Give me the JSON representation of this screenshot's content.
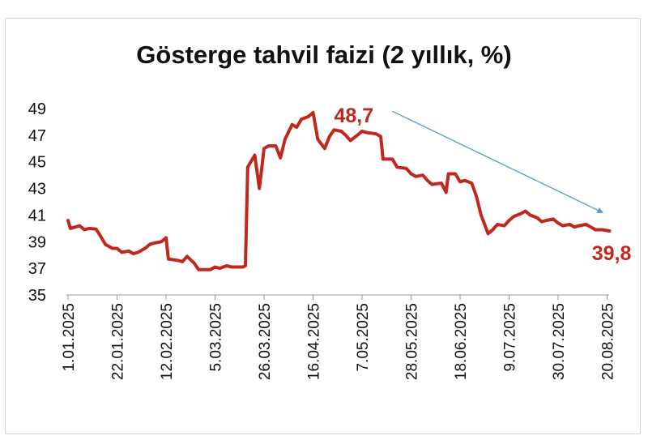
{
  "chart_data": {
    "type": "line",
    "title": "Gösterge tahvil faizi (2 yıllık, %)",
    "xlabel": "",
    "ylabel": "",
    "ylim": [
      35,
      49
    ],
    "yticks": [
      "49",
      "47",
      "45",
      "43",
      "41",
      "39",
      "37",
      "35"
    ],
    "xticks": [
      "1.01.2025",
      "22.01.2025",
      "12.02.2025",
      "5.03.2025",
      "26.03.2025",
      "16.04.2025",
      "7.05.2025",
      "28.05.2025",
      "18.06.2025",
      "9.07.2025",
      "30.07.2025",
      "20.08.2025"
    ],
    "grid": false,
    "legend": "none",
    "series": [
      {
        "color": "#c0281e",
        "points": [
          [
            "2025-01-01",
            40.6
          ],
          [
            "2025-01-02",
            40.0
          ],
          [
            "2025-01-06",
            40.2
          ],
          [
            "2025-01-08",
            39.9
          ],
          [
            "2025-01-10",
            40.0
          ],
          [
            "2025-01-13",
            39.95
          ],
          [
            "2025-01-15",
            39.4
          ],
          [
            "2025-01-17",
            38.8
          ],
          [
            "2025-01-20",
            38.5
          ],
          [
            "2025-01-22",
            38.5
          ],
          [
            "2025-01-24",
            38.2
          ],
          [
            "2025-01-27",
            38.3
          ],
          [
            "2025-01-29",
            38.1
          ],
          [
            "2025-01-31",
            38.2
          ],
          [
            "2025-02-03",
            38.5
          ],
          [
            "2025-02-05",
            38.8
          ],
          [
            "2025-02-07",
            38.9
          ],
          [
            "2025-02-10",
            39.0
          ],
          [
            "2025-02-12",
            39.3
          ],
          [
            "2025-02-13",
            37.7
          ],
          [
            "2025-02-17",
            37.6
          ],
          [
            "2025-02-19",
            37.5
          ],
          [
            "2025-02-21",
            37.9
          ],
          [
            "2025-02-24",
            37.4
          ],
          [
            "2025-02-26",
            36.9
          ],
          [
            "2025-03-03",
            36.9
          ],
          [
            "2025-03-05",
            37.1
          ],
          [
            "2025-03-07",
            37.0
          ],
          [
            "2025-03-10",
            37.2
          ],
          [
            "2025-03-12",
            37.1
          ],
          [
            "2025-03-14",
            37.1
          ],
          [
            "2025-03-17",
            37.1
          ],
          [
            "2025-03-18",
            37.2
          ],
          [
            "2025-03-19",
            44.6
          ],
          [
            "2025-03-21",
            45.2
          ],
          [
            "2025-03-22",
            45.5
          ],
          [
            "2025-03-24",
            43.0
          ],
          [
            "2025-03-26",
            46.0
          ],
          [
            "2025-03-28",
            46.2
          ],
          [
            "2025-03-31",
            46.2
          ],
          [
            "2025-04-02",
            45.3
          ],
          [
            "2025-04-04",
            46.7
          ],
          [
            "2025-04-07",
            47.8
          ],
          [
            "2025-04-09",
            47.6
          ],
          [
            "2025-04-11",
            48.2
          ],
          [
            "2025-04-14",
            48.4
          ],
          [
            "2025-04-16",
            48.7
          ],
          [
            "2025-04-18",
            46.7
          ],
          [
            "2025-04-21",
            46.0
          ],
          [
            "2025-04-23",
            46.9
          ],
          [
            "2025-04-25",
            47.4
          ],
          [
            "2025-04-28",
            47.3
          ],
          [
            "2025-04-30",
            47.0
          ],
          [
            "2025-05-02",
            46.6
          ],
          [
            "2025-05-05",
            47.0
          ],
          [
            "2025-05-07",
            47.3
          ],
          [
            "2025-05-09",
            47.2
          ],
          [
            "2025-05-13",
            47.1
          ],
          [
            "2025-05-15",
            46.9
          ],
          [
            "2025-05-16",
            45.2
          ],
          [
            "2025-05-20",
            45.2
          ],
          [
            "2025-05-22",
            44.6
          ],
          [
            "2025-05-26",
            44.5
          ],
          [
            "2025-05-28",
            44.1
          ],
          [
            "2025-05-30",
            43.9
          ],
          [
            "2025-06-02",
            44.0
          ],
          [
            "2025-06-04",
            43.6
          ],
          [
            "2025-06-06",
            43.3
          ],
          [
            "2025-06-10",
            43.4
          ],
          [
            "2025-06-12",
            42.7
          ],
          [
            "2025-06-13",
            44.1
          ],
          [
            "2025-06-16",
            44.1
          ],
          [
            "2025-06-18",
            43.5
          ],
          [
            "2025-06-20",
            43.6
          ],
          [
            "2025-06-23",
            43.4
          ],
          [
            "2025-06-25",
            42.4
          ],
          [
            "2025-06-27",
            41.0
          ],
          [
            "2025-06-30",
            39.6
          ],
          [
            "2025-07-02",
            39.9
          ],
          [
            "2025-07-04",
            40.3
          ],
          [
            "2025-07-07",
            40.2
          ],
          [
            "2025-07-09",
            40.6
          ],
          [
            "2025-07-11",
            40.9
          ],
          [
            "2025-07-14",
            41.1
          ],
          [
            "2025-07-16",
            41.3
          ],
          [
            "2025-07-18",
            41.0
          ],
          [
            "2025-07-21",
            40.8
          ],
          [
            "2025-07-23",
            40.5
          ],
          [
            "2025-07-25",
            40.6
          ],
          [
            "2025-07-28",
            40.7
          ],
          [
            "2025-07-30",
            40.4
          ],
          [
            "2025-08-01",
            40.2
          ],
          [
            "2025-08-04",
            40.3
          ],
          [
            "2025-08-06",
            40.1
          ],
          [
            "2025-08-08",
            40.2
          ],
          [
            "2025-08-11",
            40.3
          ],
          [
            "2025-08-13",
            40.1
          ],
          [
            "2025-08-15",
            39.9
          ],
          [
            "2025-08-18",
            39.9
          ],
          [
            "2025-08-21",
            39.8
          ]
        ]
      }
    ],
    "annotations": [
      {
        "text": "48,7",
        "x": "2025-04-16",
        "y": 48.7,
        "color": "#c0281e"
      },
      {
        "text": "39,8",
        "x": "2025-08-21",
        "y": 39.8,
        "color": "#c0281e"
      }
    ],
    "trend_arrow": {
      "from": [
        "2025-05-20",
        48.8
      ],
      "to": [
        "2025-08-18",
        41.2
      ],
      "color": "#5b9bd5"
    }
  }
}
